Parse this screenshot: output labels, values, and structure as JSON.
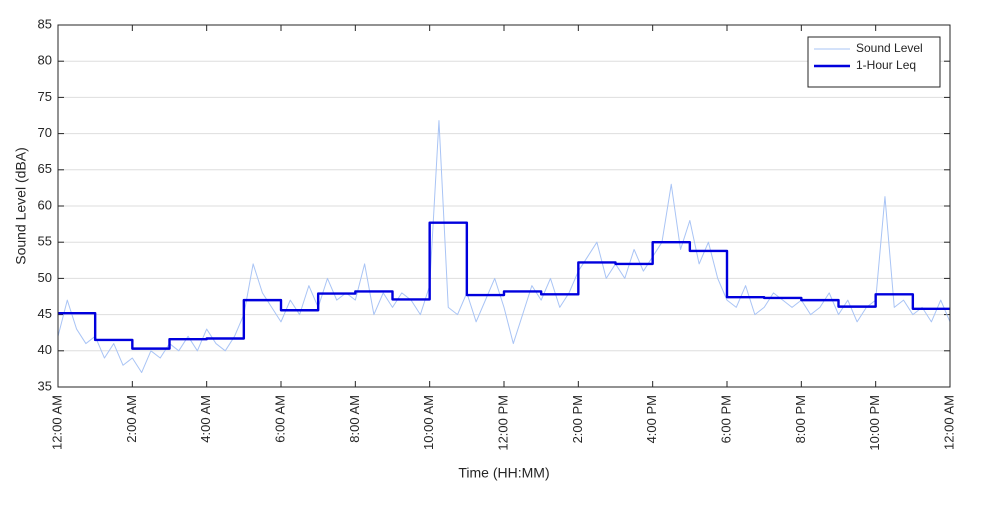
{
  "chart_data": {
    "type": "line",
    "xlabel": "Time (HH:MM)",
    "ylabel": "Sound Level (dBA)",
    "xlim": [
      0,
      24
    ],
    "xticks": [
      {
        "value": 0,
        "label": "12:00 AM"
      },
      {
        "value": 2,
        "label": "2:00 AM"
      },
      {
        "value": 4,
        "label": "4:00 AM"
      },
      {
        "value": 6,
        "label": "6:00 AM"
      },
      {
        "value": 8,
        "label": "8:00 AM"
      },
      {
        "value": 10,
        "label": "10:00 AM"
      },
      {
        "value": 12,
        "label": "12:00 PM"
      },
      {
        "value": 14,
        "label": "2:00 PM"
      },
      {
        "value": 16,
        "label": "4:00 PM"
      },
      {
        "value": 18,
        "label": "6:00 PM"
      },
      {
        "value": 20,
        "label": "8:00 PM"
      },
      {
        "value": 22,
        "label": "10:00 PM"
      },
      {
        "value": 24,
        "label": "12:00 AM"
      }
    ],
    "ylim": [
      35,
      85
    ],
    "yticks": [
      35,
      40,
      45,
      50,
      55,
      60,
      65,
      70,
      75,
      80,
      85
    ],
    "grid": true,
    "legend": "northeast",
    "series": [
      {
        "name": "Sound Level",
        "color": "#a9c4f5",
        "width": 1,
        "drawstyle": "default",
        "x": [
          0,
          0.25,
          0.5,
          0.75,
          1,
          1.25,
          1.5,
          1.75,
          2,
          2.25,
          2.5,
          2.75,
          3,
          3.25,
          3.5,
          3.75,
          4,
          4.25,
          4.5,
          4.75,
          5,
          5.25,
          5.5,
          5.75,
          6,
          6.25,
          6.5,
          6.75,
          7,
          7.25,
          7.5,
          7.75,
          8,
          8.25,
          8.5,
          8.75,
          9,
          9.25,
          9.5,
          9.75,
          10,
          10.25,
          10.5,
          10.75,
          11,
          11.25,
          11.5,
          11.75,
          12,
          12.25,
          12.5,
          12.75,
          13,
          13.25,
          13.5,
          13.75,
          14,
          14.25,
          14.5,
          14.75,
          15,
          15.25,
          15.5,
          15.75,
          16,
          16.25,
          16.5,
          16.75,
          17,
          17.25,
          17.5,
          17.75,
          18,
          18.25,
          18.5,
          18.75,
          19,
          19.25,
          19.5,
          19.75,
          20,
          20.25,
          20.5,
          20.75,
          21,
          21.25,
          21.5,
          21.75,
          22,
          22.25,
          22.5,
          22.75,
          23,
          23.25,
          23.5,
          23.75,
          24
        ],
        "values": [
          42,
          47,
          43,
          41,
          42,
          39,
          41,
          38,
          39,
          37,
          40,
          39,
          41,
          40,
          42,
          40,
          43,
          41,
          40,
          42,
          45,
          52,
          48,
          46,
          44,
          47,
          45,
          49,
          46,
          50,
          47,
          48,
          47,
          52,
          45,
          48,
          46,
          48,
          47,
          45,
          49,
          71.8,
          46,
          45,
          48,
          44,
          47,
          50,
          46,
          41,
          45,
          49,
          47,
          50,
          46,
          48,
          51,
          53,
          55,
          50,
          52,
          50,
          54,
          51,
          53,
          55,
          63,
          54,
          58,
          52,
          55,
          50,
          47,
          46,
          49,
          45,
          46,
          48,
          47,
          46,
          47,
          45,
          46,
          48,
          45,
          47,
          44,
          46,
          47,
          61.3,
          46,
          47,
          45,
          46,
          44,
          47,
          44
        ]
      },
      {
        "name": "1-Hour Leq",
        "color": "#0000dd",
        "width": 2.4,
        "drawstyle": "steps-post",
        "x": [
          0,
          1,
          2,
          3,
          4,
          5,
          6,
          7,
          8,
          9,
          10,
          11,
          12,
          13,
          14,
          15,
          16,
          17,
          18,
          19,
          20,
          21,
          22,
          23
        ],
        "values": [
          45.2,
          41.5,
          40.3,
          41.6,
          41.7,
          47.0,
          45.6,
          47.9,
          48.2,
          47.1,
          57.7,
          47.7,
          48.2,
          47.8,
          52.2,
          52.0,
          55.0,
          53.8,
          47.4,
          47.3,
          47.0,
          46.1,
          47.8,
          45.8
        ]
      }
    ]
  }
}
